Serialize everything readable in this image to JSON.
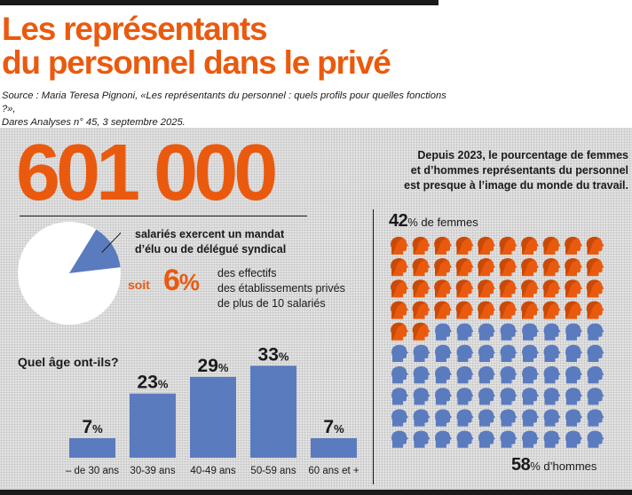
{
  "header": {
    "title_line1": "Les représentants",
    "title_line2": "du personnel dans le privé",
    "source_line1": "Source : Maria Teresa Pignoni, «Les représentants du personnel : quels profils pour quelles fonctions ?»,",
    "source_line2": "Dares Analyses n° 45, 3 septembre 2025."
  },
  "headline": {
    "number": "601 000",
    "text_line1": "salariés exercent un mandat",
    "text_line2": "d’élu ou de délégué syndical",
    "soit_word": "soit",
    "soit_number": "6",
    "soit_symbol": "%",
    "share_percent": 6,
    "effectifs_line1": "des effectifs",
    "effectifs_line2": "des établissements privés",
    "effectifs_line3": "de plus de 10 salariés"
  },
  "gender": {
    "intro_line1": "Depuis 2023, le pourcentage de femmes",
    "intro_line2": "et d’hommes représentants du personnel",
    "intro_line3": "est presque à l’image du monde du travail.",
    "women_value": "42",
    "women_suffix": "% de femmes",
    "men_value": "58",
    "men_suffix": "% d’hommes",
    "women_percent": 42,
    "men_percent": 58,
    "grid_columns": 10,
    "grid_rows": 10
  },
  "colors": {
    "orange": "#ea5a0e",
    "blue": "#5b7bbf",
    "dark": "#1a1a1a"
  },
  "chart_data": {
    "type": "bar",
    "title": "Quel âge ont-ils?",
    "categories": [
      "– de 30 ans",
      "30-39 ans",
      "40-49 ans",
      "50-59 ans",
      "60 ans et +"
    ],
    "values": [
      7,
      23,
      29,
      33,
      7
    ],
    "value_suffix": "%",
    "xlabel": "",
    "ylabel": "",
    "ylim": [
      0,
      35
    ]
  }
}
